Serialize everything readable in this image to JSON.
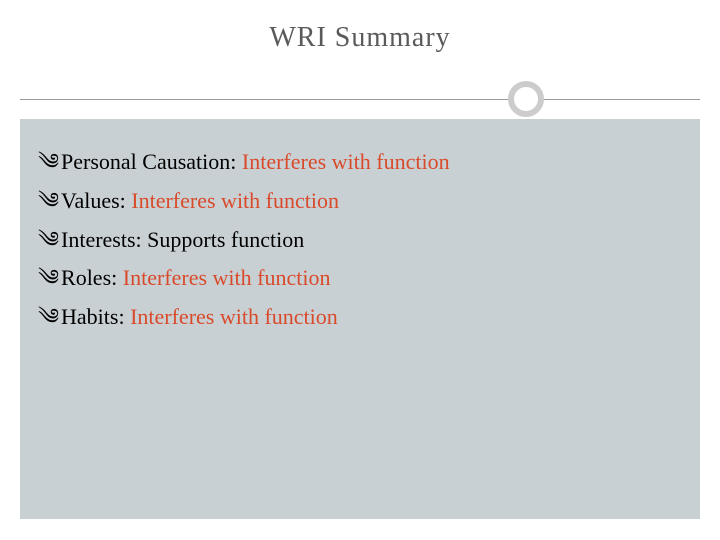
{
  "title": "WRI Summary",
  "colors": {
    "title_text": "#5a5a5a",
    "body_bg": "#c9d0d4",
    "divider_line": "#999999",
    "divider_circle_border": "#cccccc",
    "interferes": "#d94a2a",
    "supports": "#000000",
    "label_text": "#000000",
    "page_bg": "#ffffff"
  },
  "typography": {
    "title_fontsize": 28,
    "body_fontsize": 22,
    "font_family": "Georgia, Times New Roman, serif"
  },
  "bullet_glyph": "༄",
  "items": [
    {
      "label": "Personal Causation:",
      "value": " Interferes with function",
      "value_color_key": "interferes"
    },
    {
      "label": "Values:",
      "value": " Interferes with function",
      "value_color_key": "interferes"
    },
    {
      "label": "Interests:",
      "value": " Supports function",
      "value_color_key": "supports"
    },
    {
      "label": "Roles:",
      "value": " Interferes with function",
      "value_color_key": "interferes"
    },
    {
      "label": "Habits:",
      "value": " Interferes with function",
      "value_color_key": "interferes"
    }
  ]
}
